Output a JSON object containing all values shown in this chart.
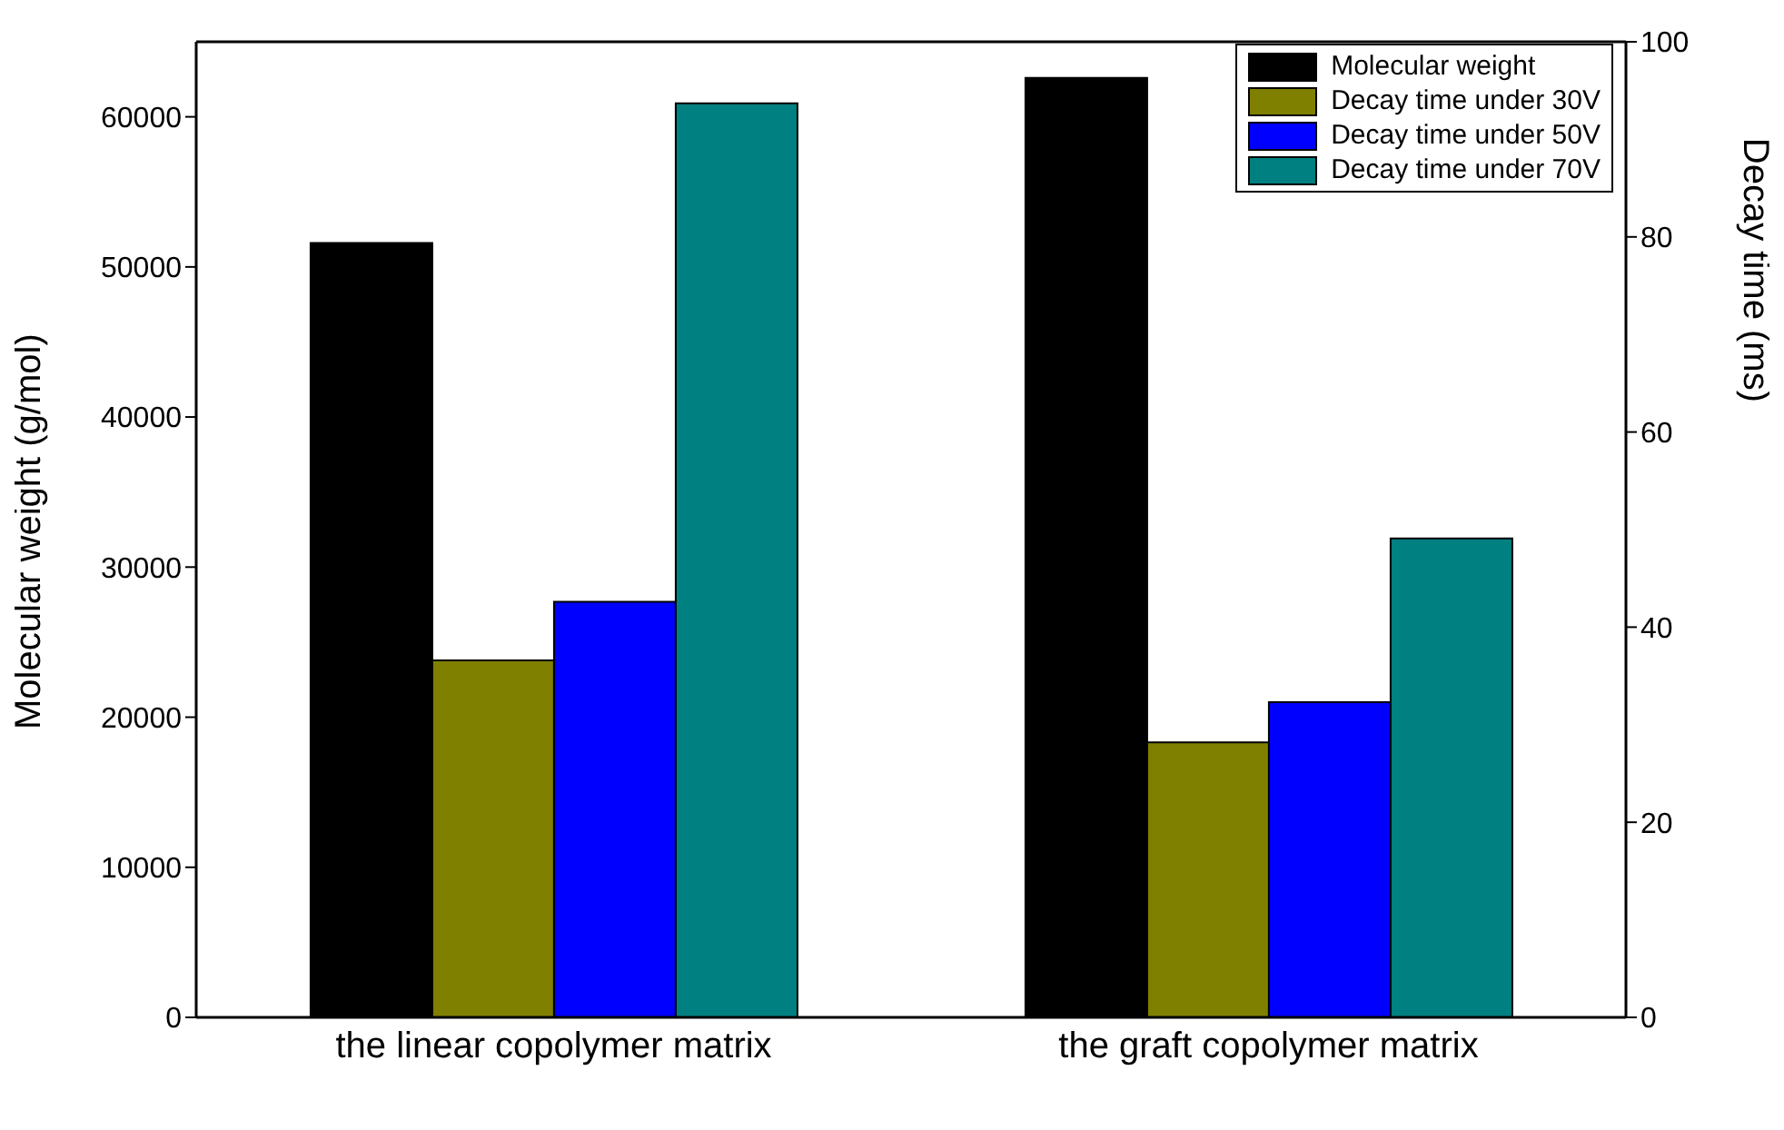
{
  "chart_data": {
    "type": "bar",
    "categories": [
      "the linear copolymer matrix",
      "the graft copolymer matrix"
    ],
    "ylabel": "Molecular weight (g/mol)",
    "y2label": "Decay time (ms)",
    "ylim": [
      0,
      65000
    ],
    "yticks": [
      0,
      10000,
      20000,
      30000,
      40000,
      50000,
      60000
    ],
    "y2lim": [
      0,
      100
    ],
    "y2ticks": [
      0,
      20,
      40,
      60,
      80,
      100
    ],
    "legend": "top right",
    "series": [
      {
        "name": "Molecular weight",
        "color": "#000000",
        "values": [
          51600,
          62600
        ]
      },
      {
        "name": "Decay time under 30V",
        "color": "#808000",
        "values": [
          36.6,
          28.2
        ],
        "axis": "y2"
      },
      {
        "name": "Decay time under 50V",
        "color": "#0000ff",
        "values": [
          42.6,
          32.3
        ],
        "axis": "y2"
      },
      {
        "name": "Decay time under 70V",
        "color": "#008080",
        "values": [
          93.7,
          49.1
        ],
        "axis": "y2"
      }
    ]
  }
}
